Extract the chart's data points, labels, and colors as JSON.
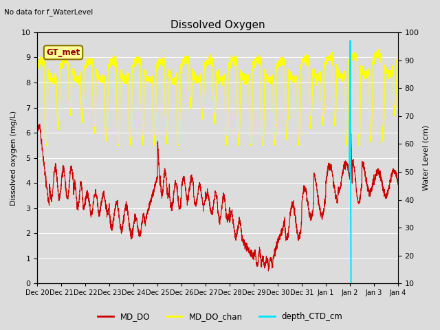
{
  "title": "Dissolved Oxygen",
  "top_left_note": "No data for f_WaterLevel",
  "gt_met_label": "GT_met",
  "ylabel_left": "Dissolved oxygen (mg/L)",
  "ylabel_right": "Water Level (cm)",
  "ylim_left": [
    0.0,
    10.0
  ],
  "ylim_right": [
    10,
    100
  ],
  "bg_color": "#dcdcdc",
  "plot_bg_color": "#dcdcdc",
  "grid_color": "#ffffff",
  "line_MD_DO_color": "#cc0000",
  "line_MD_DO_chan_color": "#ffff00",
  "line_depth_CTD_color": "#00e5ff",
  "tick_labels": [
    "Dec 20",
    "Dec 21",
    "Dec 22",
    "Dec 23",
    "Dec 24",
    "Dec 25",
    "Dec 26",
    "Dec 27",
    "Dec 28",
    "Dec 29",
    "Dec 30",
    "Dec 31",
    "Jan 1",
    "Jan 2",
    "Jan 3",
    "Jan 4"
  ],
  "legend_labels": [
    "MD_DO",
    "MD_DO_chan",
    "depth_CTD_cm"
  ],
  "figsize": [
    6.4,
    4.8
  ],
  "dpi": 100
}
